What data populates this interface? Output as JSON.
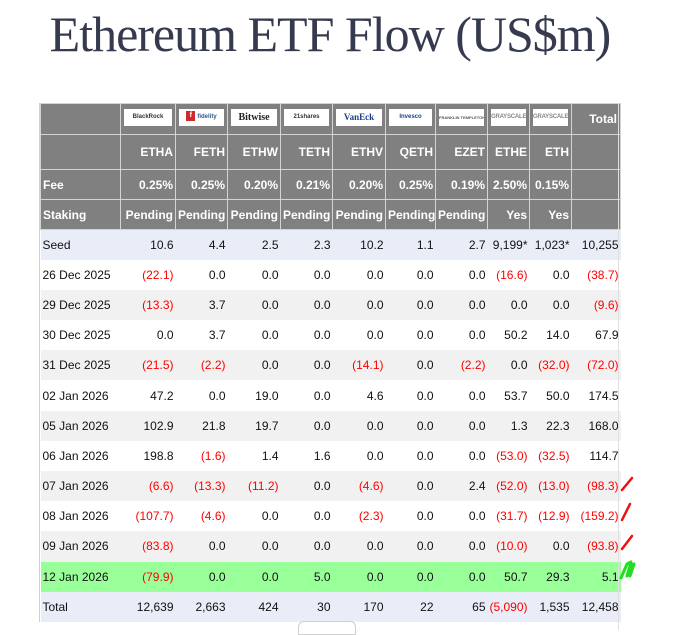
{
  "title": "Ethereum ETF Flow (US$m)",
  "table": {
    "issuers": [
      {
        "name": "BlackRock",
        "logo_text": "BlackRock",
        "style": "blackrock"
      },
      {
        "name": "Fidelity",
        "logo_text": "fidelity",
        "style": "fidelity"
      },
      {
        "name": "Bitwise",
        "logo_text": "Bitwise",
        "style": "bitwise"
      },
      {
        "name": "21shares",
        "logo_text": "21shares",
        "style": "shares21"
      },
      {
        "name": "VanEck",
        "logo_text": "VanEck",
        "style": "vaneck"
      },
      {
        "name": "Invesco",
        "logo_text": "Invesco",
        "style": "invesco"
      },
      {
        "name": "Franklin Templeton",
        "logo_text": "FRANKLIN TEMPLETON",
        "style": "franklin"
      },
      {
        "name": "Grayscale",
        "logo_text": "GRAYSCALE",
        "style": "grayscale"
      },
      {
        "name": "Grayscale",
        "logo_text": "GRAYSCALE",
        "style": "grayscale"
      }
    ],
    "total_header": "Total",
    "tickers": [
      "ETHA",
      "FETH",
      "ETHW",
      "TETH",
      "ETHV",
      "QETH",
      "EZET",
      "ETHE",
      "ETH"
    ],
    "fee_label": "Fee",
    "fees": [
      "0.25%",
      "0.25%",
      "0.20%",
      "0.21%",
      "0.20%",
      "0.25%",
      "0.19%",
      "2.50%",
      "0.15%"
    ],
    "staking_label": "Staking",
    "staking": [
      "Pending",
      "Pending",
      "Pending",
      "Pending",
      "Pending",
      "Pending",
      "Pending",
      "Yes",
      "Yes"
    ],
    "rows": [
      {
        "label": "Seed",
        "type": "seed",
        "values": [
          "10.6",
          "4.4",
          "2.5",
          "2.3",
          "10.2",
          "1.1",
          "2.7",
          "9,199*",
          "1,023*",
          "10,255"
        ]
      },
      {
        "label": "26 Dec 2025",
        "type": "odd",
        "values": [
          "(22.1)",
          "0.0",
          "0.0",
          "0.0",
          "0.0",
          "0.0",
          "0.0",
          "(16.6)",
          "0.0",
          "(38.7)"
        ]
      },
      {
        "label": "29 Dec 2025",
        "type": "even",
        "values": [
          "(13.3)",
          "3.7",
          "0.0",
          "0.0",
          "0.0",
          "0.0",
          "0.0",
          "0.0",
          "0.0",
          "(9.6)"
        ]
      },
      {
        "label": "30 Dec 2025",
        "type": "odd",
        "values": [
          "0.0",
          "3.7",
          "0.0",
          "0.0",
          "0.0",
          "0.0",
          "0.0",
          "50.2",
          "14.0",
          "67.9"
        ]
      },
      {
        "label": "31 Dec 2025",
        "type": "even",
        "values": [
          "(21.5)",
          "(2.2)",
          "0.0",
          "0.0",
          "(14.1)",
          "0.0",
          "(2.2)",
          "0.0",
          "(32.0)",
          "(72.0)"
        ]
      },
      {
        "label": "02 Jan 2026",
        "type": "odd",
        "values": [
          "47.2",
          "0.0",
          "19.0",
          "0.0",
          "4.6",
          "0.0",
          "0.0",
          "53.7",
          "50.0",
          "174.5"
        ]
      },
      {
        "label": "05 Jan 2026",
        "type": "even",
        "values": [
          "102.9",
          "21.8",
          "19.7",
          "0.0",
          "0.0",
          "0.0",
          "0.0",
          "1.3",
          "22.3",
          "168.0"
        ]
      },
      {
        "label": "06 Jan 2026",
        "type": "odd",
        "values": [
          "198.8",
          "(1.6)",
          "1.4",
          "1.6",
          "0.0",
          "0.0",
          "0.0",
          "(53.0)",
          "(32.5)",
          "114.7"
        ]
      },
      {
        "label": "07 Jan 2026",
        "type": "even",
        "values": [
          "(6.6)",
          "(13.3)",
          "(11.2)",
          "0.0",
          "(4.6)",
          "0.0",
          "2.4",
          "(52.0)",
          "(13.0)",
          "(98.3)"
        ]
      },
      {
        "label": "08 Jan 2026",
        "type": "odd",
        "values": [
          "(107.7)",
          "(4.6)",
          "0.0",
          "0.0",
          "(2.3)",
          "0.0",
          "0.0",
          "(31.7)",
          "(12.9)",
          "(159.2)"
        ]
      },
      {
        "label": "09 Jan 2026",
        "type": "even",
        "values": [
          "(83.8)",
          "0.0",
          "0.0",
          "0.0",
          "0.0",
          "0.0",
          "0.0",
          "(10.0)",
          "0.0",
          "(93.8)"
        ]
      },
      {
        "label": "12 Jan 2026",
        "type": "highlight",
        "values": [
          "(79.9)",
          "0.0",
          "0.0",
          "5.0",
          "0.0",
          "0.0",
          "0.0",
          "50.7",
          "29.3",
          "5.1"
        ]
      },
      {
        "label": "Total",
        "type": "total",
        "values": [
          "12,639",
          "2,663",
          "424",
          "30",
          "170",
          "22",
          "65",
          "(5,090)",
          "1,535",
          "12,458"
        ]
      }
    ]
  },
  "annotations": {
    "red_marks_rows": [
      "07 Jan 2026",
      "08 Jan 2026",
      "09 Jan 2026"
    ],
    "green_mark_row": "12 Jan 2026",
    "colors": {
      "red_mark": "#ee1111",
      "green_mark": "#22dd22",
      "negative": "#ff0000",
      "highlight_row": "#99ff99",
      "header_bg": "#808080"
    }
  }
}
